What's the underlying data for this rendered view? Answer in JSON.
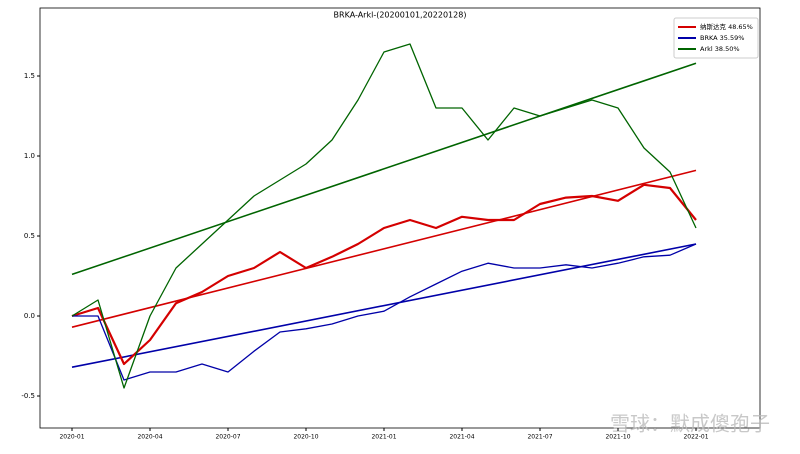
{
  "chart_data": {
    "type": "line",
    "title": "BRKA-Arkl-(20200101,20220128)",
    "x": [
      "2020-01",
      "2020-02",
      "2020-03",
      "2020-04",
      "2020-05",
      "2020-06",
      "2020-07",
      "2020-08",
      "2020-09",
      "2020-10",
      "2020-11",
      "2020-12",
      "2021-01",
      "2021-02",
      "2021-03",
      "2021-04",
      "2021-05",
      "2021-06",
      "2021-07",
      "2021-08",
      "2021-09",
      "2021-10",
      "2021-11",
      "2021-12",
      "2022-01"
    ],
    "series": [
      {
        "name": "纳斯达克 48.65%",
        "color": "#d40000",
        "values": [
          0.0,
          0.05,
          -0.3,
          -0.15,
          0.08,
          0.15,
          0.25,
          0.3,
          0.4,
          0.3,
          0.37,
          0.45,
          0.55,
          0.6,
          0.55,
          0.62,
          0.6,
          0.6,
          0.7,
          0.74,
          0.75,
          0.72,
          0.82,
          0.8,
          0.6
        ],
        "trend": [
          -0.07,
          0.91
        ]
      },
      {
        "name": "BRKA 35.59%",
        "color": "#0000a8",
        "values": [
          0.0,
          0.0,
          -0.4,
          -0.35,
          -0.35,
          -0.3,
          -0.35,
          -0.22,
          -0.1,
          -0.08,
          -0.05,
          0.0,
          0.03,
          0.12,
          0.2,
          0.28,
          0.33,
          0.3,
          0.3,
          0.32,
          0.3,
          0.33,
          0.37,
          0.38,
          0.45
        ],
        "trend": [
          -0.32,
          0.45
        ]
      },
      {
        "name": "Arkl 38.50%",
        "color": "#006400",
        "values": [
          0.0,
          0.1,
          -0.45,
          0.0,
          0.3,
          0.45,
          0.6,
          0.75,
          0.85,
          0.95,
          1.1,
          1.35,
          1.65,
          1.7,
          1.3,
          1.3,
          1.1,
          1.3,
          1.25,
          1.3,
          1.35,
          1.3,
          1.05,
          0.9,
          0.55
        ],
        "trend": [
          0.26,
          1.58
        ]
      }
    ],
    "xticks": [
      "2020-01",
      "2020-04",
      "2020-07",
      "2020-10",
      "2021-01",
      "2021-04",
      "2021-07",
      "2021-10",
      "2022-01"
    ],
    "ylim": [
      -0.7,
      1.925
    ],
    "yticks": [
      -0.5,
      {
        "value": 0,
        "label": "0.0"
      },
      0.5,
      {
        "value": 1,
        "label": "1.0"
      },
      1.5
    ],
    "legend": "upper right",
    "watermark": "雪球：默成傻孢子"
  }
}
